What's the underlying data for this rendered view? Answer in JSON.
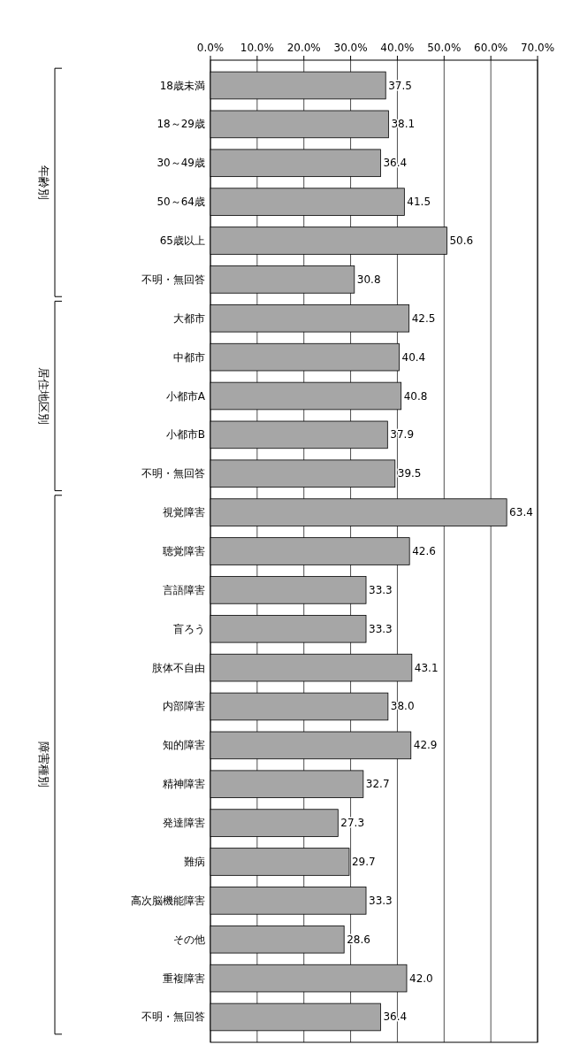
{
  "chart_data": {
    "type": "bar",
    "orientation": "horizontal",
    "categories": [
      "18歳未満",
      "18～29歳",
      "30～49歳",
      "50～64歳",
      "65歳以上",
      "不明・無回答",
      "大都市",
      "中都市",
      "小都市A",
      "小都市B",
      "不明・無回答",
      "視覚障害",
      "聴覚障害",
      "言語障害",
      "盲ろう",
      "肢体不自由",
      "内部障害",
      "知的障害",
      "精神障害",
      "発達障害",
      "難病",
      "高次脳機能障害",
      "その他",
      "重複障害",
      "不明・無回答"
    ],
    "values": [
      37.5,
      38.1,
      36.4,
      41.5,
      50.6,
      30.8,
      42.5,
      40.4,
      40.8,
      37.9,
      39.5,
      63.4,
      42.6,
      33.3,
      33.3,
      43.1,
      38.0,
      42.9,
      32.7,
      27.3,
      29.7,
      33.3,
      28.6,
      42.0,
      36.4
    ],
    "value_labels": [
      "37.5",
      "38.1",
      "36.4",
      "41.5",
      "50.6",
      "30.8",
      "42.5",
      "40.4",
      "40.8",
      "37.9",
      "39.5",
      "63.4",
      "42.6",
      "33.3",
      "33.3",
      "43.1",
      "38.0",
      "42.9",
      "32.7",
      "27.3",
      "29.7",
      "33.3",
      "28.6",
      "42.0",
      "36.4"
    ],
    "color": "#a6a6a6",
    "xlim": [
      0,
      70
    ],
    "xticks": [
      {
        "value": 0,
        "label": "0.0%"
      },
      {
        "value": 10,
        "label": "10.0%"
      },
      {
        "value": 20,
        "label": "20.0%"
      },
      {
        "value": 30,
        "label": "30.0%"
      },
      {
        "value": 40,
        "label": "40.0%"
      },
      {
        "value": 50,
        "label": "50.0%"
      },
      {
        "value": 60,
        "label": "60.0%"
      },
      {
        "value": 70,
        "label": "70.0%"
      }
    ],
    "grid": "x",
    "annotations": [
      "年齢別",
      "居住地区別",
      "障害種別"
    ]
  }
}
